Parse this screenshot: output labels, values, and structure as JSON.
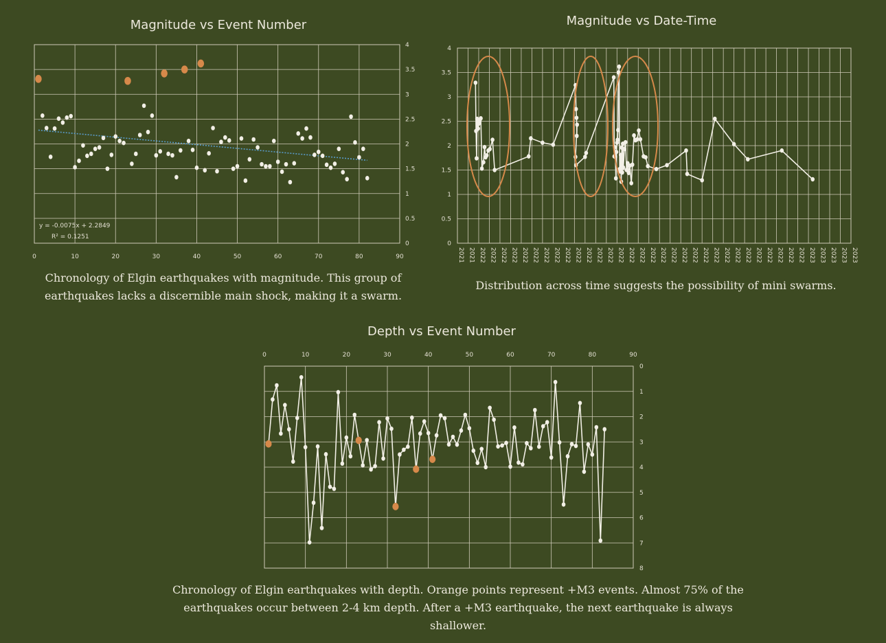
{
  "colors": {
    "background": "#3d4a22",
    "grid": "#cfcab8",
    "point": "#f2efe6",
    "line": "#f2efe6",
    "highlight": "#d6894a",
    "trend": "#5a9ccc"
  },
  "captions": {
    "c1_line1": "Chronology of Elgin earthquakes with magnitude. This group of",
    "c1_line2": "earthquakes lacks a discernible main shock, making it a swarm.",
    "c2": "Distribution across time suggests the possibility of mini swarms.",
    "c3_line1": "Chronology of Elgin earthquakes with depth. Orange points represent +M3 events. Almost 75% of the",
    "c3_line2": "earthquakes occur between 2-4 km depth. After a +M3 earthquake, the next earthquake is always shallower."
  },
  "chart_data": [
    {
      "type": "scatter",
      "title": "Magnitude vs Event Number",
      "xlim": [
        0,
        90
      ],
      "ylim": [
        0,
        4
      ],
      "x_ticks": [
        0,
        10,
        20,
        30,
        40,
        50,
        60,
        70,
        80,
        90
      ],
      "y_ticks": [
        0,
        0.5,
        1,
        1.5,
        2,
        2.5,
        3,
        3.5,
        4
      ],
      "grid": true,
      "trendline": {
        "slope": -0.0075,
        "intercept": 2.2849,
        "x_range": [
          1,
          82
        ]
      },
      "equation": "y = -0.0075x + 2.2849",
      "r2": "R² = 0.1251",
      "series": [
        {
          "values": [
            [
              2,
              2.57
            ],
            [
              3,
              2.32
            ],
            [
              4,
              1.74
            ],
            [
              5,
              2.31
            ],
            [
              6,
              2.51
            ],
            [
              7,
              2.43
            ],
            [
              8,
              2.53
            ],
            [
              9,
              2.56
            ],
            [
              10,
              1.53
            ],
            [
              11,
              1.66
            ],
            [
              12,
              1.97
            ],
            [
              13,
              1.76
            ],
            [
              14,
              1.8
            ],
            [
              15,
              1.9
            ],
            [
              16,
              1.93
            ],
            [
              17,
              2.12
            ],
            [
              18,
              1.5
            ],
            [
              19,
              1.78
            ],
            [
              20,
              2.15
            ],
            [
              21,
              2.06
            ],
            [
              22,
              2.02
            ],
            [
              24,
              1.6
            ],
            [
              25,
              1.8
            ],
            [
              26,
              2.18
            ],
            [
              27,
              2.77
            ],
            [
              28,
              2.24
            ],
            [
              29,
              2.57
            ],
            [
              30,
              1.77
            ],
            [
              31,
              1.85
            ],
            [
              33,
              1.8
            ],
            [
              34,
              1.77
            ],
            [
              35,
              1.33
            ],
            [
              36,
              1.87
            ],
            [
              38,
              2.06
            ],
            [
              39,
              1.88
            ],
            [
              40,
              1.52
            ],
            [
              42,
              1.47
            ],
            [
              43,
              1.81
            ],
            [
              44,
              2.32
            ],
            [
              45,
              1.45
            ],
            [
              46,
              2.04
            ],
            [
              47,
              2.13
            ],
            [
              48,
              2.07
            ],
            [
              49,
              1.5
            ],
            [
              50,
              1.55
            ],
            [
              51,
              2.11
            ],
            [
              52,
              1.26
            ],
            [
              53,
              1.69
            ],
            [
              54,
              2.09
            ],
            [
              55,
              1.93
            ],
            [
              56,
              1.59
            ],
            [
              57,
              1.55
            ],
            [
              58,
              1.55
            ],
            [
              59,
              2.06
            ],
            [
              60,
              1.64
            ],
            [
              61,
              1.44
            ],
            [
              62,
              1.59
            ],
            [
              63,
              1.23
            ],
            [
              64,
              1.61
            ],
            [
              65,
              2.21
            ],
            [
              66,
              2.11
            ],
            [
              67,
              2.31
            ],
            [
              68,
              2.13
            ],
            [
              69,
              1.78
            ],
            [
              70,
              1.84
            ],
            [
              71,
              1.76
            ],
            [
              72,
              1.58
            ],
            [
              73,
              1.52
            ],
            [
              74,
              1.6
            ],
            [
              75,
              1.9
            ],
            [
              76,
              1.43
            ],
            [
              77,
              1.29
            ],
            [
              78,
              2.55
            ],
            [
              79,
              2.03
            ],
            [
              80,
              1.73
            ],
            [
              81,
              1.9
            ],
            [
              82,
              1.31
            ]
          ]
        },
        {
          "highlight": true,
          "values": [
            [
              1,
              3.31
            ],
            [
              23,
              3.27
            ],
            [
              32,
              3.42
            ],
            [
              37,
              3.5
            ],
            [
              41,
              3.62
            ]
          ]
        }
      ]
    },
    {
      "type": "line",
      "title": "Magnitude vs Date-Time",
      "ylim": [
        0,
        4
      ],
      "y_ticks": [
        0,
        0.5,
        1,
        1.5,
        2,
        2.5,
        3,
        3.5,
        4
      ],
      "x_tick_labels": [
        "2021",
        "2021",
        "2022",
        "2022",
        "2022",
        "2022",
        "2022",
        "2022",
        "2022",
        "2022",
        "2022",
        "2022",
        "2022",
        "2022",
        "2022",
        "2022",
        "2022",
        "2022",
        "2022",
        "2022",
        "2022",
        "2022",
        "2022",
        "2022",
        "2022",
        "2022",
        "2022",
        "2022",
        "2022",
        "2022",
        "2022",
        "2022",
        "2022",
        "2023",
        "2023",
        "2023",
        "2023",
        "2023"
      ],
      "grid": true,
      "swarm_ellipses": 3,
      "values": [
        [
          1.7,
          3.29
        ],
        [
          1.75,
          2.3
        ],
        [
          1.8,
          1.74
        ],
        [
          1.85,
          2.55
        ],
        [
          1.9,
          2.48
        ],
        [
          1.95,
          2.35
        ],
        [
          2.0,
          2.45
        ],
        [
          2.1,
          2.52
        ],
        [
          2.2,
          2.56
        ],
        [
          2.3,
          1.53
        ],
        [
          2.45,
          1.66
        ],
        [
          2.55,
          1.97
        ],
        [
          2.65,
          1.76
        ],
        [
          2.75,
          1.8
        ],
        [
          2.9,
          1.9
        ],
        [
          3.05,
          1.93
        ],
        [
          3.3,
          2.12
        ],
        [
          3.5,
          1.5
        ],
        [
          6.7,
          1.78
        ],
        [
          6.9,
          2.15
        ],
        [
          8.0,
          2.06
        ],
        [
          9.0,
          2.02
        ],
        [
          11.1,
          3.24
        ],
        [
          11.15,
          2.75
        ],
        [
          11.2,
          2.57
        ],
        [
          11.22,
          2.2
        ],
        [
          11.25,
          2.43
        ],
        [
          11.1,
          1.77
        ],
        [
          11.15,
          1.6
        ],
        [
          12.0,
          1.77
        ],
        [
          12.1,
          1.85
        ],
        [
          14.7,
          3.4
        ],
        [
          14.75,
          1.78
        ],
        [
          14.8,
          1.97
        ],
        [
          14.85,
          1.77
        ],
        [
          14.9,
          1.33
        ],
        [
          14.95,
          1.87
        ],
        [
          15.0,
          2.06
        ],
        [
          15.05,
          2.12
        ],
        [
          15.1,
          2.32
        ],
        [
          15.15,
          3.5
        ],
        [
          15.2,
          3.62
        ],
        [
          15.25,
          1.52
        ],
        [
          15.3,
          1.47
        ],
        [
          15.35,
          1.81
        ],
        [
          15.4,
          1.26
        ],
        [
          15.45,
          1.96
        ],
        [
          15.5,
          1.45
        ],
        [
          15.55,
          2.04
        ],
        [
          15.6,
          1.55
        ],
        [
          15.7,
          1.93
        ],
        [
          15.8,
          2.07
        ],
        [
          15.9,
          1.5
        ],
        [
          16.0,
          1.64
        ],
        [
          16.1,
          1.44
        ],
        [
          16.2,
          1.59
        ],
        [
          16.35,
          1.23
        ],
        [
          16.45,
          1.61
        ],
        [
          16.6,
          2.21
        ],
        [
          16.75,
          2.11
        ],
        [
          16.9,
          2.13
        ],
        [
          17.05,
          2.31
        ],
        [
          17.2,
          2.13
        ],
        [
          17.5,
          1.78
        ],
        [
          17.7,
          1.76
        ],
        [
          17.9,
          1.58
        ],
        [
          18.7,
          1.52
        ],
        [
          19.7,
          1.6
        ],
        [
          21.5,
          1.9
        ],
        [
          21.6,
          1.42
        ],
        [
          23.0,
          1.29
        ],
        [
          24.2,
          2.55
        ],
        [
          26.0,
          2.03
        ],
        [
          27.3,
          1.72
        ],
        [
          30.5,
          1.9
        ],
        [
          33.4,
          1.31
        ]
      ]
    },
    {
      "type": "line",
      "title": "Depth vs Event Number",
      "xlim": [
        0,
        90
      ],
      "ylim": [
        0,
        8
      ],
      "y_inverted": true,
      "x_axis_position": "top",
      "x_ticks": [
        0,
        10,
        20,
        30,
        40,
        50,
        60,
        70,
        80,
        90
      ],
      "y_ticks": [
        0,
        1,
        2,
        3,
        4,
        5,
        6,
        7,
        8
      ],
      "grid": true,
      "values": [
        3.08,
        1.32,
        0.76,
        2.67,
        1.54,
        2.5,
        3.78,
        2.05,
        0.44,
        3.21,
        6.98,
        5.41,
        3.18,
        6.41,
        3.49,
        4.78,
        4.86,
        1.03,
        3.86,
        2.83,
        3.57,
        1.93,
        2.94,
        3.93,
        2.93,
        4.09,
        3.96,
        2.22,
        3.66,
        2.07,
        2.48,
        5.56,
        3.5,
        3.31,
        3.19,
        2.04,
        4.08,
        2.67,
        2.19,
        2.65,
        3.69,
        2.74,
        1.95,
        2.06,
        3.1,
        2.8,
        3.11,
        2.55,
        1.93,
        2.46,
        3.35,
        3.83,
        3.28,
        4.0,
        1.65,
        2.12,
        3.18,
        3.14,
        3.04,
        3.98,
        2.43,
        3.82,
        3.89,
        3.05,
        3.25,
        1.74,
        3.19,
        2.38,
        2.22,
        3.62,
        0.63,
        3.02,
        5.48,
        3.57,
        3.09,
        3.16,
        1.46,
        4.18,
        3.1,
        3.5,
        2.42,
        6.91,
        2.5
      ],
      "highlight_events": [
        1,
        23,
        32,
        37,
        41
      ]
    }
  ]
}
